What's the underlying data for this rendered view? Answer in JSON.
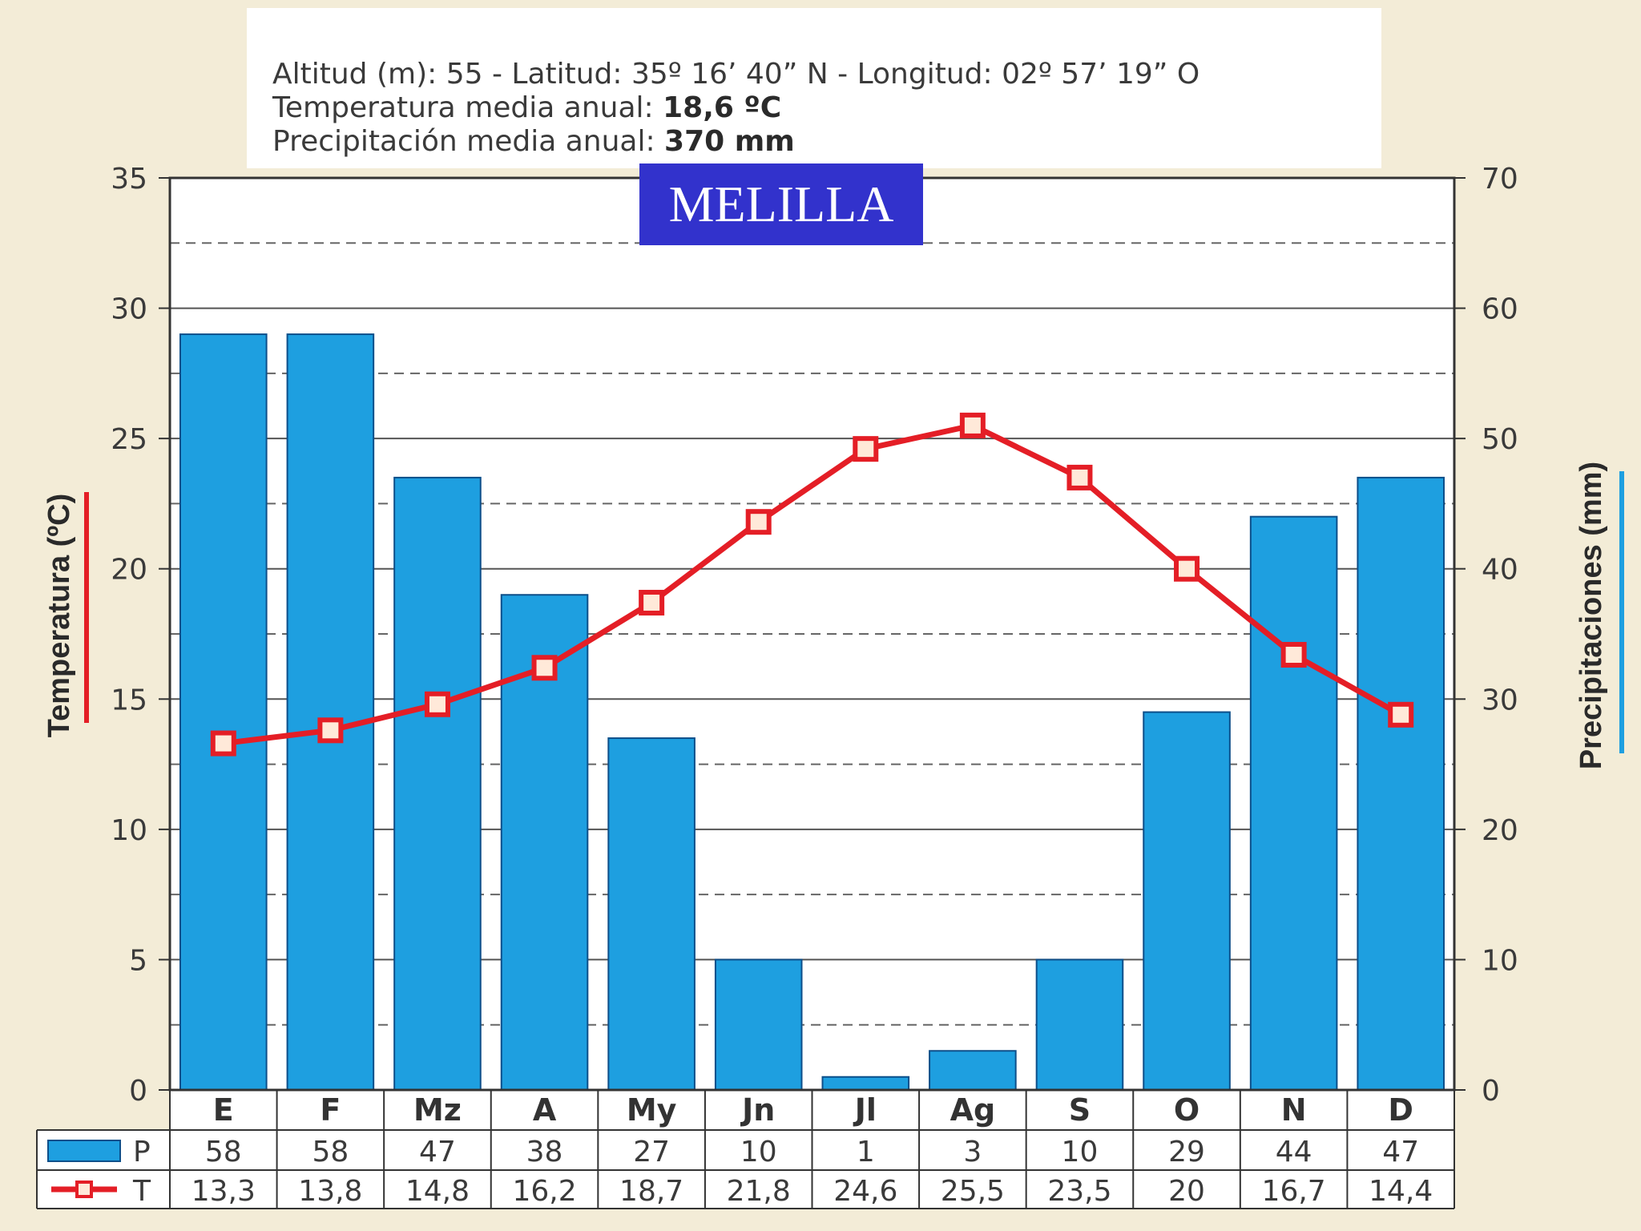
{
  "info": {
    "line1": "Altitud (m): 55 - Latitud: 35º 16’ 40” N - Longitud: 02º 57’ 19” O",
    "line2_label": "Temperatura media anual: ",
    "line2_value": "18,6 ºC",
    "line3_label": "Precipitación media anual: ",
    "line3_value": "370 mm"
  },
  "chart_data": {
    "type": "bar",
    "title": "MELILLA",
    "categories": [
      "E",
      "F",
      "Mz",
      "A",
      "My",
      "Jn",
      "Jl",
      "Ag",
      "S",
      "O",
      "N",
      "D"
    ],
    "series": [
      {
        "name": "P",
        "type": "bar",
        "axis": "right",
        "values": [
          58,
          58,
          47,
          38,
          27,
          10,
          1,
          3,
          10,
          29,
          44,
          47
        ],
        "labels": [
          "58",
          "58",
          "47",
          "38",
          "27",
          "10",
          "1",
          "3",
          "10",
          "29",
          "44",
          "47"
        ],
        "color": "#1e9fe0"
      },
      {
        "name": "T",
        "type": "line",
        "axis": "left",
        "values": [
          13.3,
          13.8,
          14.8,
          16.2,
          18.7,
          21.8,
          24.6,
          25.5,
          23.5,
          20,
          16.7,
          14.4
        ],
        "labels": [
          "13,3",
          "13,8",
          "14,8",
          "16,2",
          "18,7",
          "21,8",
          "24,6",
          "25,5",
          "23,5",
          "20",
          "16,7",
          "14,4"
        ],
        "color": "#e41e26"
      }
    ],
    "ylabel_left": "Temperatura (ºC)",
    "ylabel_right": "Precipitaciones (mm)",
    "ylim_left": [
      0,
      35
    ],
    "ylim_right": [
      0,
      70
    ],
    "yticks_left": [
      "0",
      "5",
      "10",
      "15",
      "20",
      "25",
      "30",
      "35"
    ],
    "yticks_right": [
      "0",
      "10",
      "20",
      "30",
      "40",
      "50",
      "60",
      "70"
    ],
    "grid": true,
    "legend": "table-bottom"
  }
}
